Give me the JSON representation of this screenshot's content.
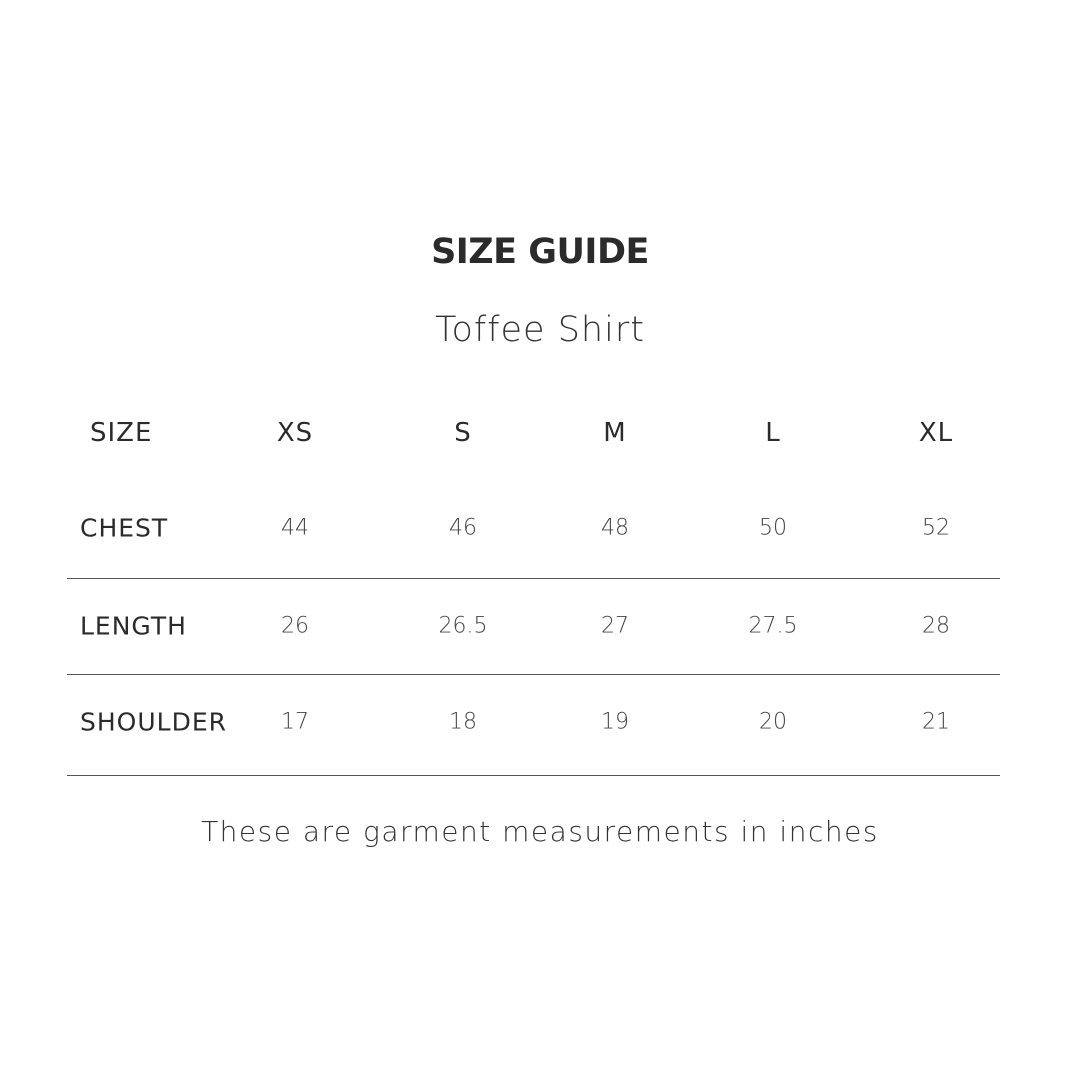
{
  "title": "SIZE GUIDE",
  "subtitle": "Toffee Shirt",
  "table": {
    "header_label": "SIZE",
    "sizes": [
      "XS",
      "S",
      "M",
      "L",
      "XL"
    ],
    "rows": [
      {
        "label": "CHEST",
        "values": [
          "44",
          "46",
          "48",
          "50",
          "52"
        ]
      },
      {
        "label": "LENGTH",
        "values": [
          "26",
          "26.5",
          "27",
          "27.5",
          "28"
        ]
      },
      {
        "label": "SHOULDER",
        "values": [
          "17",
          "18",
          "19",
          "20",
          "21"
        ]
      }
    ]
  },
  "note": "These are garment measurements in inches"
}
